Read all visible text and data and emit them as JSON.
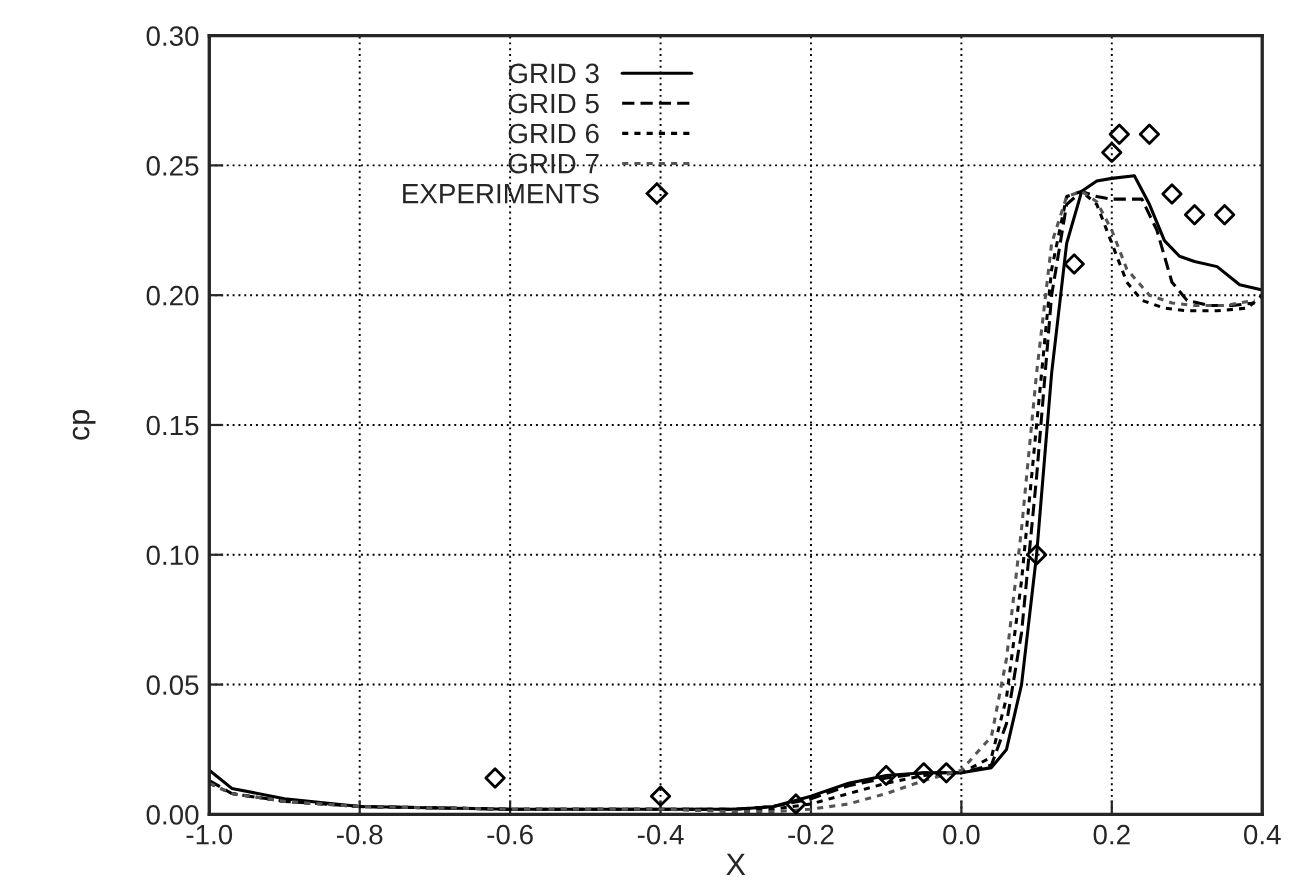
{
  "chart_data": {
    "type": "line",
    "xlabel": "X",
    "ylabel": "cp",
    "xlim": [
      -1.0,
      0.4
    ],
    "ylim": [
      0.0,
      0.3
    ],
    "xticks": [
      {
        "value": -1.0,
        "label": "-1.0"
      },
      {
        "value": -0.8,
        "label": "-0.8"
      },
      {
        "value": -0.6,
        "label": "-0.6"
      },
      {
        "value": -0.4,
        "label": "-0.4"
      },
      {
        "value": -0.2,
        "label": "-0.2"
      },
      {
        "value": 0.0,
        "label": "0.0"
      },
      {
        "value": 0.2,
        "label": "0.2"
      },
      {
        "value": 0.4,
        "label": "0.4"
      }
    ],
    "yticks": [
      {
        "value": 0.0,
        "label": "0.00"
      },
      {
        "value": 0.05,
        "label": "0.05"
      },
      {
        "value": 0.1,
        "label": "0.10"
      },
      {
        "value": 0.15,
        "label": "0.15"
      },
      {
        "value": 0.2,
        "label": "0.20"
      },
      {
        "value": 0.25,
        "label": "0.25"
      },
      {
        "value": 0.3,
        "label": "0.30"
      }
    ],
    "grid": true,
    "legend": "top center",
    "series": [
      {
        "name": "GRID 3",
        "color": "#000000",
        "line_style": "solid",
        "x": [
          -1.0,
          -0.97,
          -0.9,
          -0.8,
          -0.6,
          -0.4,
          -0.3,
          -0.25,
          -0.2,
          -0.15,
          -0.1,
          -0.05,
          0.0,
          0.04,
          0.06,
          0.08,
          0.1,
          0.12,
          0.14,
          0.16,
          0.18,
          0.2,
          0.23,
          0.25,
          0.27,
          0.29,
          0.31,
          0.34,
          0.37,
          0.4
        ],
        "values": [
          0.017,
          0.01,
          0.006,
          0.003,
          0.002,
          0.002,
          0.002,
          0.003,
          0.007,
          0.012,
          0.015,
          0.016,
          0.016,
          0.018,
          0.025,
          0.05,
          0.1,
          0.17,
          0.22,
          0.24,
          0.244,
          0.245,
          0.246,
          0.235,
          0.221,
          0.215,
          0.213,
          0.211,
          0.204,
          0.202
        ]
      },
      {
        "name": "GRID 5",
        "color": "#000000",
        "line_style": "dashed",
        "x": [
          -1.0,
          -0.97,
          -0.9,
          -0.8,
          -0.6,
          -0.4,
          -0.3,
          -0.25,
          -0.2,
          -0.15,
          -0.1,
          -0.05,
          0.0,
          0.04,
          0.06,
          0.08,
          0.1,
          0.12,
          0.14,
          0.16,
          0.18,
          0.2,
          0.24,
          0.26,
          0.28,
          0.3,
          0.33,
          0.36,
          0.39
        ],
        "values": [
          0.013,
          0.008,
          0.005,
          0.003,
          0.002,
          0.002,
          0.002,
          0.003,
          0.006,
          0.011,
          0.014,
          0.016,
          0.016,
          0.019,
          0.035,
          0.07,
          0.13,
          0.2,
          0.235,
          0.24,
          0.238,
          0.237,
          0.237,
          0.225,
          0.205,
          0.198,
          0.196,
          0.196,
          0.197
        ]
      },
      {
        "name": "GRID 6",
        "color": "#000000",
        "line_style": "dotted",
        "x": [
          -1.0,
          -0.97,
          -0.9,
          -0.8,
          -0.6,
          -0.4,
          -0.3,
          -0.25,
          -0.2,
          -0.15,
          -0.1,
          -0.05,
          0.0,
          0.04,
          0.06,
          0.08,
          0.1,
          0.12,
          0.14,
          0.16,
          0.18,
          0.2,
          0.22,
          0.24,
          0.27,
          0.3,
          0.34,
          0.38,
          0.4
        ],
        "values": [
          0.012,
          0.008,
          0.005,
          0.003,
          0.002,
          0.002,
          0.002,
          0.002,
          0.004,
          0.008,
          0.012,
          0.015,
          0.016,
          0.022,
          0.045,
          0.09,
          0.15,
          0.21,
          0.238,
          0.24,
          0.235,
          0.22,
          0.205,
          0.198,
          0.195,
          0.194,
          0.194,
          0.195,
          0.2
        ]
      },
      {
        "name": "GRID 7",
        "color": "#555555",
        "line_style": "dotted",
        "x": [
          -1.0,
          -0.97,
          -0.9,
          -0.8,
          -0.6,
          -0.4,
          -0.3,
          -0.25,
          -0.2,
          -0.15,
          -0.1,
          -0.05,
          0.0,
          0.04,
          0.06,
          0.08,
          0.1,
          0.12,
          0.14,
          0.16,
          0.18,
          0.2,
          0.22,
          0.25,
          0.28,
          0.31,
          0.35,
          0.39
        ],
        "values": [
          0.012,
          0.008,
          0.005,
          0.003,
          0.002,
          0.002,
          0.001,
          0.001,
          0.002,
          0.004,
          0.008,
          0.013,
          0.017,
          0.03,
          0.06,
          0.11,
          0.17,
          0.22,
          0.238,
          0.24,
          0.236,
          0.225,
          0.21,
          0.2,
          0.197,
          0.196,
          0.196,
          0.198
        ]
      },
      {
        "name": "EXPERIMENTS",
        "type": "scatter",
        "marker": "diamond",
        "color": "#000000",
        "x": [
          -0.62,
          -0.4,
          -0.22,
          -0.1,
          -0.05,
          -0.02,
          0.1,
          0.15,
          0.2,
          0.21,
          0.25,
          0.28,
          0.31,
          0.35
        ],
        "values": [
          0.014,
          0.007,
          0.004,
          0.015,
          0.016,
          0.016,
          0.1,
          0.212,
          0.255,
          0.262,
          0.262,
          0.239,
          0.231,
          0.231
        ]
      }
    ]
  }
}
